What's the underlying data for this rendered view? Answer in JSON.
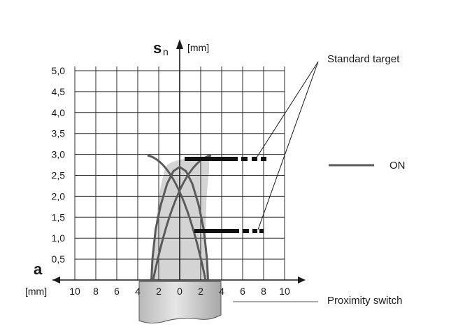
{
  "axes": {
    "y_symbol": "s",
    "y_subscript": "n",
    "y_unit": "[mm]",
    "x_symbol": "a",
    "x_unit": "[mm]"
  },
  "y_ticks": [
    "0,5",
    "1,0",
    "1,5",
    "2,0",
    "2,5",
    "3,0",
    "3,5",
    "4,0",
    "4,5",
    "5,0"
  ],
  "x_ticks_left": [
    "10",
    "8",
    "6",
    "4",
    "2"
  ],
  "x_tick_zero": "0",
  "x_ticks_right": [
    "2",
    "4",
    "6",
    "8",
    "10"
  ],
  "labels": {
    "standard_target": "Standard target",
    "on": "ON",
    "proximity_switch": "Proximity switch"
  },
  "colors": {
    "curve": "#5a5a5a",
    "grid": "#2a2a2a",
    "shade": "#d4d4d4",
    "target_bar": "#111111"
  },
  "chart_data": {
    "type": "line",
    "xlabel": "a [mm]",
    "ylabel": "sn [mm]",
    "xlim": [
      -10,
      10
    ],
    "ylim": [
      0,
      5.0
    ],
    "grid": true,
    "series": [
      {
        "name": "ON",
        "x": [
          -2.7,
          -2.6,
          -2.3,
          -1.8,
          -1.2,
          -0.6,
          0,
          0.6,
          1.2,
          1.8,
          2.3,
          2.6,
          2.7
        ],
        "y": [
          0,
          0.5,
          1.2,
          1.8,
          2.3,
          2.6,
          2.7,
          2.6,
          2.3,
          1.8,
          1.2,
          0.5,
          0
        ]
      }
    ],
    "targets": [
      {
        "label": "Standard target",
        "y": 2.9,
        "x_start": 0.5,
        "x_end": 8.5
      },
      {
        "label": "Standard target",
        "y": 1.15,
        "x_start": 1.5,
        "x_end": 8.0
      }
    ]
  }
}
